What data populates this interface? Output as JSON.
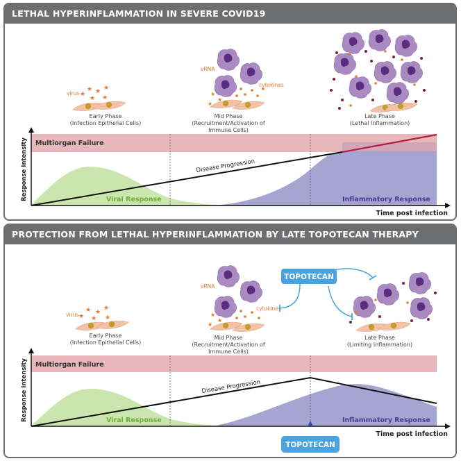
{
  "colors": {
    "header_bg": "#6d6e70",
    "multiorgan": "#e8b7bb",
    "viral": "#c5e2a6",
    "inflammatory": "#9c9bcc",
    "immune_cell": "#a98ac1",
    "nucleus": "#5a2d80",
    "virus_orange": "#e4792e",
    "epithelial": "#f2c2a6",
    "topotecan_blue": "#4aa3df",
    "progression_red": "#b11d45"
  },
  "panels": [
    {
      "header": "LETHAL HYPERINFLAMMATION IN SEVERE COVID19",
      "phases": [
        {
          "line1": "Early Phase",
          "line2": "(Infection Epithelial Cells)",
          "line3": ""
        },
        {
          "line1": "Mid Phase",
          "line2": "(Recruitment/Activation of",
          "line3": "Immune Cells)"
        },
        {
          "line1": "Late Phase",
          "line2": "(Lethal Inflammation)",
          "line3": ""
        }
      ],
      "labels": {
        "virus": "virus",
        "vrna": "vRNA",
        "cytokines": "cytokines",
        "multiorgan": "Multiorgan Failure",
        "disease_progression": "Disease Progression",
        "viral_response": "Viral Response",
        "inflammatory_response": "Inflammatory Response",
        "y_axis": "Response Intensity",
        "x_axis": "Time post infection"
      }
    },
    {
      "header": "PROTECTION FROM LETHAL HYPERINFLAMMATION BY LATE TOPOTECAN THERAPY",
      "phases": [
        {
          "line1": "Early Phase",
          "line2": "(Infection Epithelial Cells)",
          "line3": ""
        },
        {
          "line1": "Mid Phase",
          "line2": "(Recruitment/Activation of",
          "line3": "Immune Cells)"
        },
        {
          "line1": "Late Phase",
          "line2": "(Limiting Inflammation)",
          "line3": ""
        }
      ],
      "labels": {
        "virus": "virus",
        "vrna": "vRNA",
        "cytokines": "cytokines",
        "multiorgan": "Multiorgan Failure",
        "disease_progression": "Disease Progression",
        "viral_response": "Viral Response",
        "inflammatory_response": "Inflammatory Response",
        "y_axis": "Response Intensity",
        "x_axis": "Time post infection",
        "topotecan_drug": "TOPOTECAN",
        "topotecan_marker": "TOPOTECAN"
      }
    }
  ]
}
